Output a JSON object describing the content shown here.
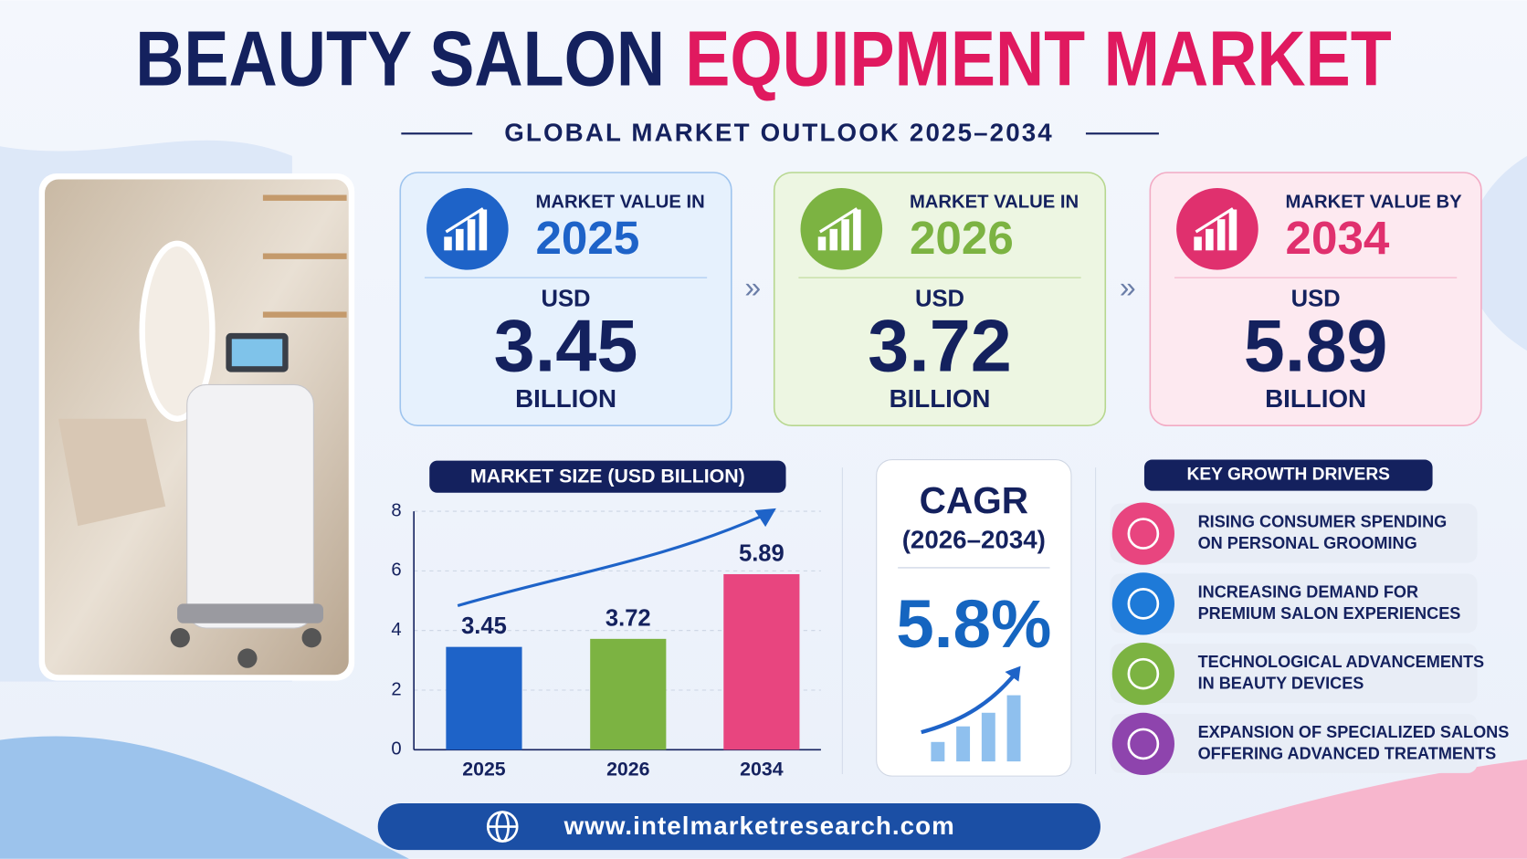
{
  "header": {
    "title_part1": "BEAUTY SALON",
    "title_part2": "EQUIPMENT MARKET",
    "subtitle": "GLOBAL MARKET OUTLOOK 2025–2034"
  },
  "cards": [
    {
      "label": "MARKET VALUE IN",
      "year": "2025",
      "currency": "USD",
      "value": "3.45",
      "unit": "BILLION"
    },
    {
      "label": "MARKET VALUE IN",
      "year": "2026",
      "currency": "USD",
      "value": "3.72",
      "unit": "BILLION"
    },
    {
      "label": "MARKET VALUE BY",
      "year": "2034",
      "currency": "USD",
      "value": "5.89",
      "unit": "BILLION"
    }
  ],
  "chart_data": {
    "type": "bar",
    "title": "MARKET SIZE (USD BILLION)",
    "categories": [
      "2025",
      "2026",
      "2034"
    ],
    "values": [
      3.45,
      3.72,
      5.89
    ],
    "colors": [
      "#1e63c8",
      "#7cb342",
      "#e8457f"
    ],
    "ylim": [
      0,
      8
    ],
    "yticks": [
      0,
      2,
      4,
      6,
      8
    ],
    "grid": true
  },
  "cagr": {
    "title": "CAGR",
    "period": "(2026–2034)",
    "value": "5.8%"
  },
  "drivers": {
    "title": "KEY GROWTH DRIVERS",
    "items": [
      [
        "RISING CONSUMER SPENDING",
        "ON PERSONAL GROOMING"
      ],
      [
        "INCREASING DEMAND FOR",
        "PREMIUM SALON EXPERIENCES"
      ],
      [
        "TECHNOLOGICAL ADVANCEMENTS",
        "IN BEAUTY DEVICES"
      ],
      [
        "EXPANSION OF SPECIALIZED SALONS",
        "OFFERING ADVANCED TREATMENTS"
      ]
    ]
  },
  "footer": {
    "url": "www.intelmarketresearch.com"
  }
}
